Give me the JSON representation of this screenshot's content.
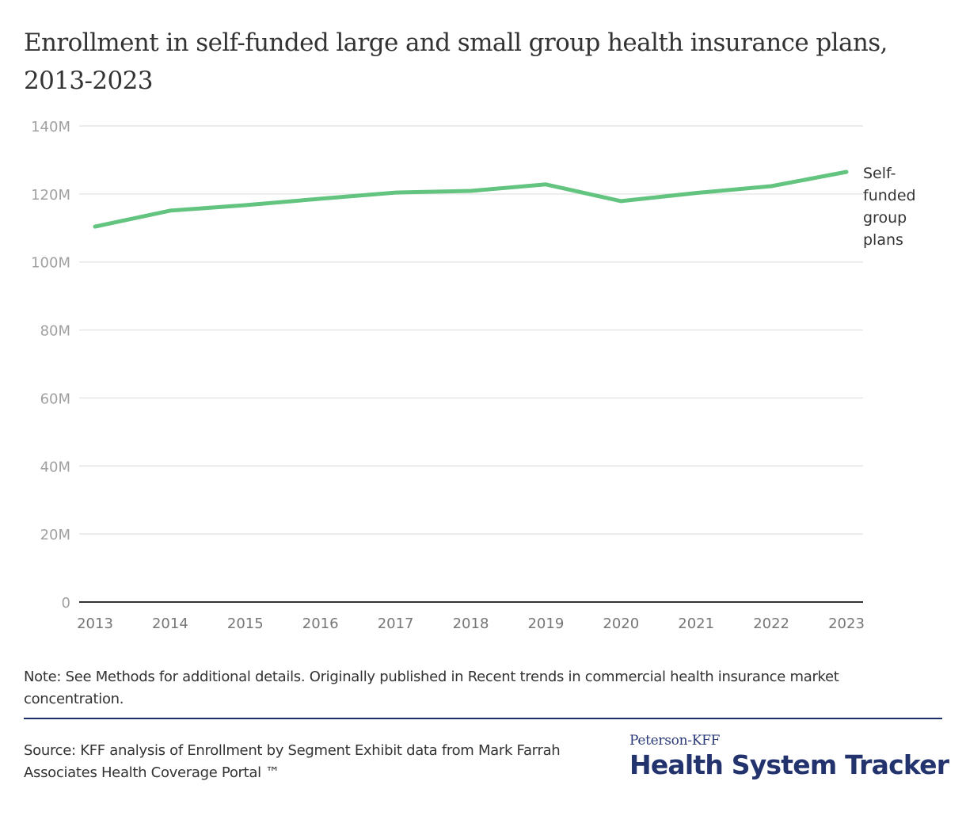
{
  "header": {
    "title": "Enrollment in self-funded large and small group health insurance plans, 2013-2023"
  },
  "chart_data": {
    "type": "line",
    "title": "Enrollment in self-funded large and small group health insurance plans, 2013-2023",
    "xlabel": "",
    "ylabel": "",
    "x": [
      "2013",
      "2014",
      "2015",
      "2016",
      "2017",
      "2018",
      "2019",
      "2020",
      "2021",
      "2022",
      "2023"
    ],
    "ylim": [
      0,
      140
    ],
    "y_unit": "millions",
    "y_ticks": [
      0,
      20,
      40,
      60,
      80,
      100,
      120,
      140
    ],
    "y_tick_labels": [
      "0",
      "20M",
      "40M",
      "60M",
      "80M",
      "100M",
      "120M",
      "140M"
    ],
    "grid": true,
    "legend": "direct label at line end (right)",
    "series": [
      {
        "name": "Self-funded group plans",
        "label_lines": [
          "Self-",
          "funded",
          "group",
          "plans"
        ],
        "color": "#63c47f",
        "values": [
          110.4,
          115.1,
          116.7,
          118.6,
          120.4,
          120.9,
          122.8,
          117.9,
          120.3,
          122.3,
          126.5
        ]
      }
    ]
  },
  "footer": {
    "note": "Note: See Methods for additional details. Originally published in Recent trends in commercial health insurance market concentration.",
    "source": "Source: KFF analysis of Enrollment by Segment Exhibit data from Mark Farrah Associates Health Coverage Portal ™",
    "logo_top": "Peterson-KFF",
    "logo_main": "Health System Tracker"
  },
  "colors": {
    "line": "#63c47f",
    "grid": "#e6e6e6",
    "axis": "#333333",
    "brand": "#23336e"
  }
}
